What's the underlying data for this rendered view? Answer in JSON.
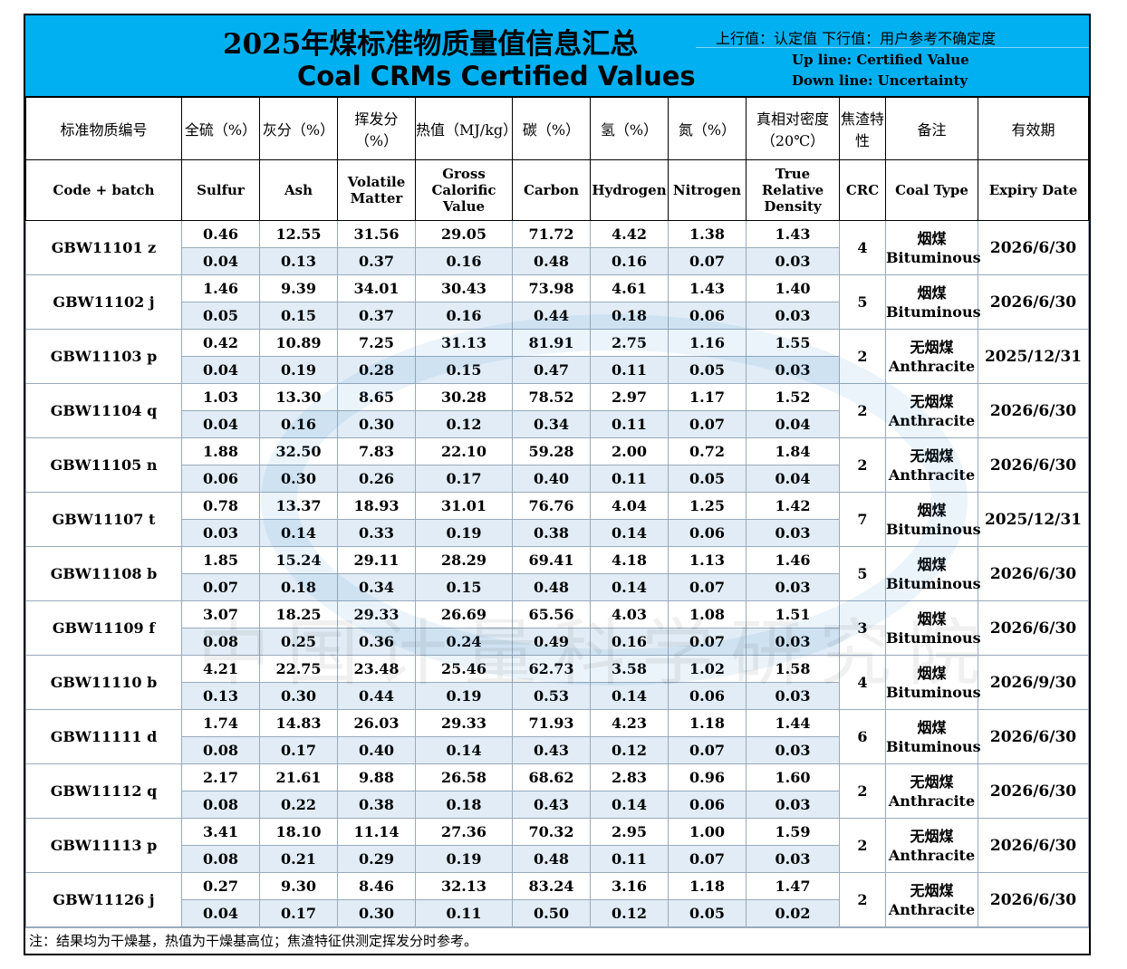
{
  "header": {
    "title_cn": "2025年煤标准物质量值信息汇总",
    "title_en": "Coal CRMs Certified Values",
    "note_cn": "上行值：认定值  下行值：用户参考不确定度",
    "note_up": "Up line: Certified Value",
    "note_down": "Down line: Uncertainty"
  },
  "columns_cn": [
    "标准物质编号",
    "全硫（%）",
    "灰分（%）",
    "挥发分（%）",
    "热值（MJ/kg）",
    "碳（%）",
    "氢（%）",
    "氮（%）",
    "真相对密度（20℃）",
    "焦渣特性",
    "备注",
    "有效期"
  ],
  "columns_en": [
    "Code + batch",
    "Sulfur",
    "Ash",
    "Volatile Matter",
    "Gross Calorific Value",
    "Carbon",
    "Hydrogen",
    "Nitrogen",
    "True Relative Density",
    "CRC",
    "Coal Type",
    "Expiry Date"
  ],
  "rows": [
    {
      "code": "GBW11101 z",
      "cert": [
        "0.46",
        "12.55",
        "31.56",
        "29.05",
        "71.72",
        "4.42",
        "1.38",
        "1.43"
      ],
      "unc": [
        "0.04",
        "0.13",
        "0.37",
        "0.16",
        "0.48",
        "0.16",
        "0.07",
        "0.03"
      ],
      "crc": "4",
      "type_cn": "烟煤",
      "type_en": "Bituminous",
      "expiry": "2026/6/30"
    },
    {
      "code": "GBW11102 j",
      "cert": [
        "1.46",
        "9.39",
        "34.01",
        "30.43",
        "73.98",
        "4.61",
        "1.43",
        "1.40"
      ],
      "unc": [
        "0.05",
        "0.15",
        "0.37",
        "0.16",
        "0.44",
        "0.18",
        "0.06",
        "0.03"
      ],
      "crc": "5",
      "type_cn": "烟煤",
      "type_en": "Bituminous",
      "expiry": "2026/6/30"
    },
    {
      "code": "GBW11103 p",
      "cert": [
        "0.42",
        "10.89",
        "7.25",
        "31.13",
        "81.91",
        "2.75",
        "1.16",
        "1.55"
      ],
      "unc": [
        "0.04",
        "0.19",
        "0.28",
        "0.15",
        "0.47",
        "0.11",
        "0.05",
        "0.03"
      ],
      "crc": "2",
      "type_cn": "无烟煤",
      "type_en": "Anthracite",
      "expiry": "2025/12/31"
    },
    {
      "code": "GBW11104 q",
      "cert": [
        "1.03",
        "13.30",
        "8.65",
        "30.28",
        "78.52",
        "2.97",
        "1.17",
        "1.52"
      ],
      "unc": [
        "0.04",
        "0.16",
        "0.30",
        "0.12",
        "0.34",
        "0.11",
        "0.07",
        "0.04"
      ],
      "crc": "2",
      "type_cn": "无烟煤",
      "type_en": "Anthracite",
      "expiry": "2026/6/30"
    },
    {
      "code": "GBW11105 n",
      "cert": [
        "1.88",
        "32.50",
        "7.83",
        "22.10",
        "59.28",
        "2.00",
        "0.72",
        "1.84"
      ],
      "unc": [
        "0.06",
        "0.30",
        "0.26",
        "0.17",
        "0.40",
        "0.11",
        "0.05",
        "0.04"
      ],
      "crc": "2",
      "type_cn": "无烟煤",
      "type_en": "Anthracite",
      "expiry": "2026/6/30"
    },
    {
      "code": "GBW11107 t",
      "cert": [
        "0.78",
        "13.37",
        "18.93",
        "31.01",
        "76.76",
        "4.04",
        "1.25",
        "1.42"
      ],
      "unc": [
        "0.03",
        "0.14",
        "0.33",
        "0.19",
        "0.38",
        "0.14",
        "0.06",
        "0.03"
      ],
      "crc": "7",
      "type_cn": "烟煤",
      "type_en": "Bituminous",
      "expiry": "2025/12/31"
    },
    {
      "code": "GBW11108 b",
      "cert": [
        "1.85",
        "15.24",
        "29.11",
        "28.29",
        "69.41",
        "4.18",
        "1.13",
        "1.46"
      ],
      "unc": [
        "0.07",
        "0.18",
        "0.34",
        "0.15",
        "0.48",
        "0.14",
        "0.07",
        "0.03"
      ],
      "crc": "5",
      "type_cn": "烟煤",
      "type_en": "Bituminous",
      "expiry": "2026/6/30"
    },
    {
      "code": "GBW11109 f",
      "cert": [
        "3.07",
        "18.25",
        "29.33",
        "26.69",
        "65.56",
        "4.03",
        "1.08",
        "1.51"
      ],
      "unc": [
        "0.08",
        "0.25",
        "0.36",
        "0.24",
        "0.49",
        "0.16",
        "0.07",
        "0.03"
      ],
      "crc": "3",
      "type_cn": "烟煤",
      "type_en": "Bituminous",
      "expiry": "2026/6/30"
    },
    {
      "code": "GBW11110 b",
      "cert": [
        "4.21",
        "22.75",
        "23.48",
        "25.46",
        "62.73",
        "3.58",
        "1.02",
        "1.58"
      ],
      "unc": [
        "0.13",
        "0.30",
        "0.44",
        "0.19",
        "0.53",
        "0.14",
        "0.06",
        "0.03"
      ],
      "crc": "4",
      "type_cn": "烟煤",
      "type_en": "Bituminous",
      "expiry": "2026/9/30"
    },
    {
      "code": "GBW11111 d",
      "cert": [
        "1.74",
        "14.83",
        "26.03",
        "29.33",
        "71.93",
        "4.23",
        "1.18",
        "1.44"
      ],
      "unc": [
        "0.08",
        "0.17",
        "0.40",
        "0.14",
        "0.43",
        "0.12",
        "0.07",
        "0.03"
      ],
      "crc": "6",
      "type_cn": "烟煤",
      "type_en": "Bituminous",
      "expiry": "2026/6/30"
    },
    {
      "code": "GBW11112 q",
      "cert": [
        "2.17",
        "21.61",
        "9.88",
        "26.58",
        "68.62",
        "2.83",
        "0.96",
        "1.60"
      ],
      "unc": [
        "0.08",
        "0.22",
        "0.38",
        "0.18",
        "0.43",
        "0.14",
        "0.06",
        "0.03"
      ],
      "crc": "2",
      "type_cn": "无烟煤",
      "type_en": "Anthracite",
      "expiry": "2026/6/30"
    },
    {
      "code": "GBW11113 p",
      "cert": [
        "3.41",
        "18.10",
        "11.14",
        "27.36",
        "70.32",
        "2.95",
        "1.00",
        "1.59"
      ],
      "unc": [
        "0.08",
        "0.21",
        "0.29",
        "0.19",
        "0.48",
        "0.11",
        "0.07",
        "0.03"
      ],
      "crc": "2",
      "type_cn": "无烟煤",
      "type_en": "Anthracite",
      "expiry": "2026/6/30"
    },
    {
      "code": "GBW11126 j",
      "cert": [
        "0.27",
        "9.30",
        "8.46",
        "32.13",
        "83.24",
        "3.16",
        "1.18",
        "1.47"
      ],
      "unc": [
        "0.04",
        "0.17",
        "0.30",
        "0.11",
        "0.50",
        "0.12",
        "0.05",
        "0.02"
      ],
      "crc": "2",
      "type_cn": "无烟煤",
      "type_en": "Anthracite",
      "expiry": "2026/6/30"
    }
  ],
  "footnote": "注：结果均为干燥基，热值为干燥基高位；焦渣特征供测定挥发分时参考。",
  "watermark": "中国计量科学研究院"
}
